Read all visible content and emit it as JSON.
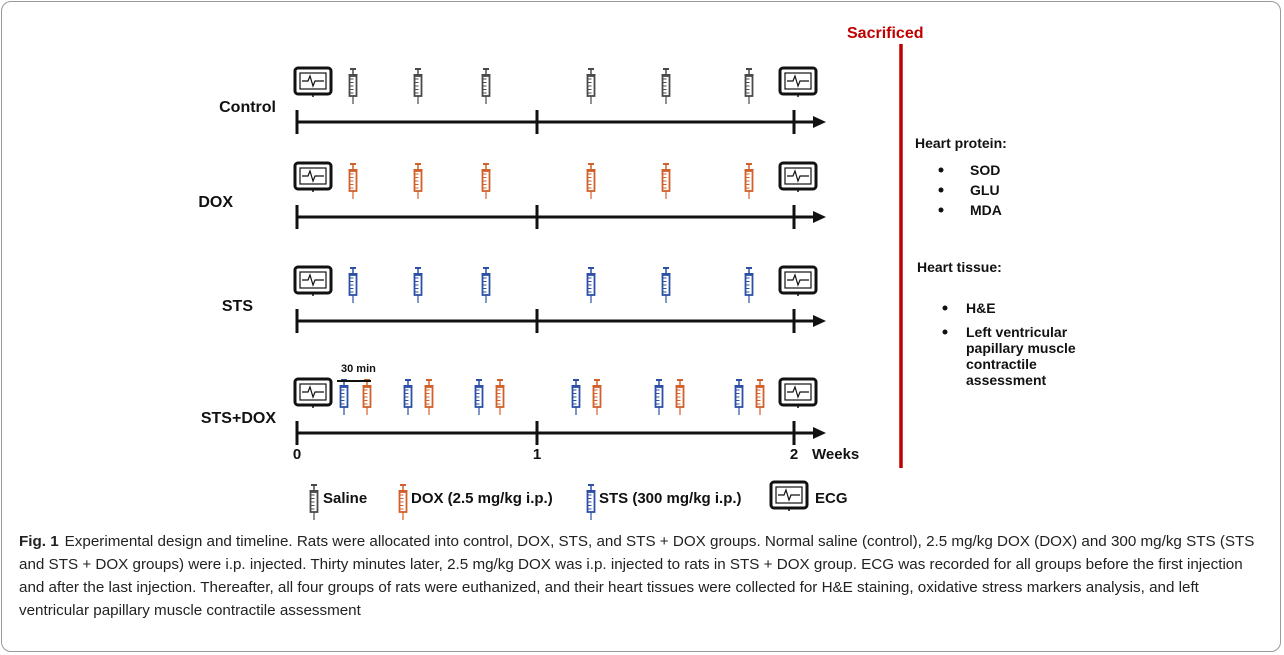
{
  "sacrificed_label": "Sacrificed",
  "groups": [
    {
      "name": "Control",
      "syringe": "gray-syringe-icon"
    },
    {
      "name": "DOX",
      "syringe": "orange-syringe-icon"
    },
    {
      "name": "STS",
      "syringe": "blue-syringe-icon"
    },
    {
      "name": "STS+DOX",
      "syringe": "blue-orange-syringe-pair"
    }
  ],
  "interval_label": "30 min",
  "axis": {
    "ticks": [
      "0",
      "1",
      "2"
    ],
    "unit": "Weeks"
  },
  "outcomes": {
    "protein_title": "Heart protein:",
    "protein_items": [
      "SOD",
      "GLU",
      "MDA"
    ],
    "tissue_title": "Heart tissue:",
    "tissue_items": [
      "H&E",
      "Left ventricular papillary muscle contractile assessment"
    ],
    "tissue_item_lines": [
      [
        "H&E"
      ],
      [
        "Left ventricular",
        "papillary muscle",
        "contractile",
        "assessment"
      ]
    ]
  },
  "legend": {
    "saline": "Saline",
    "dox": "DOX (2.5 mg/kg i.p.)",
    "sts": "STS (300 mg/kg i.p.)",
    "ecg": "ECG"
  },
  "colors": {
    "saline": "#4a4a4a",
    "dox": "#d2602a",
    "sts": "#2c50a6",
    "sacrificed": "#c00000",
    "axis": "#111111"
  },
  "caption": {
    "label": "Fig. 1",
    "text": "Experimental design and timeline. Rats were allocated into control, DOX, STS, and STS + DOX groups. Normal saline (control), 2.5 mg/kg DOX (DOX) and 300 mg/kg STS (STS and STS + DOX groups) were i.p. injected. Thirty minutes later, 2.5 mg/kg DOX was i.p. injected to rats in STS + DOX group. ECG was recorded for all groups before the first injection and after the last injection. Thereafter, all four groups of rats were euthanized, and their heart tissues were collected for H&E staining, oxidative stress markers analysis, and left ventricular papillary muscle contractile assessment"
  }
}
